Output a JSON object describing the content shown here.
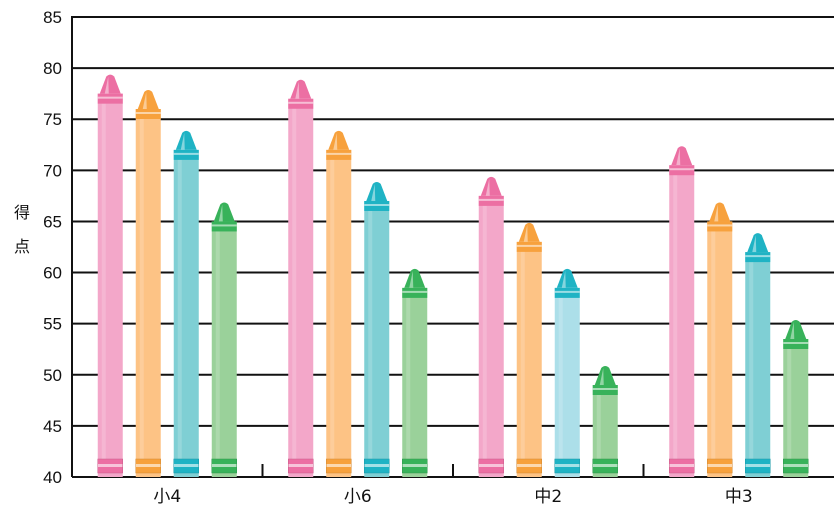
{
  "chart_data": {
    "type": "bar",
    "title": "",
    "xlabel": "",
    "ylabel": "得点",
    "ylim": [
      40,
      85
    ],
    "yticks": [
      "40",
      "45",
      "50",
      "55",
      "60",
      "65",
      "70",
      "75",
      "80",
      "85"
    ],
    "grid": true,
    "legend": "none",
    "categories": [
      "小4",
      "小6",
      "中2",
      "中3"
    ],
    "series": [
      {
        "color": "#f3a7c9",
        "values": [
          77.5,
          77.0,
          67.5,
          70.5
        ]
      },
      {
        "color": "#fdc385",
        "values": [
          76.0,
          72.0,
          63.0,
          65.0
        ]
      },
      {
        "color": "#7fcfd4",
        "values": [
          72.0,
          67.0,
          58.5,
          62.0
        ]
      },
      {
        "color": "#9ad19a",
        "values": [
          65.0,
          58.5,
          49.0,
          53.5
        ]
      }
    ],
    "highlight": {
      "category": "中2",
      "series_index": 2,
      "color": "#acdfe9"
    },
    "accent_colors": [
      "#ec6fa3",
      "#f7a13d",
      "#1fb3c4",
      "#38b25a"
    ]
  }
}
